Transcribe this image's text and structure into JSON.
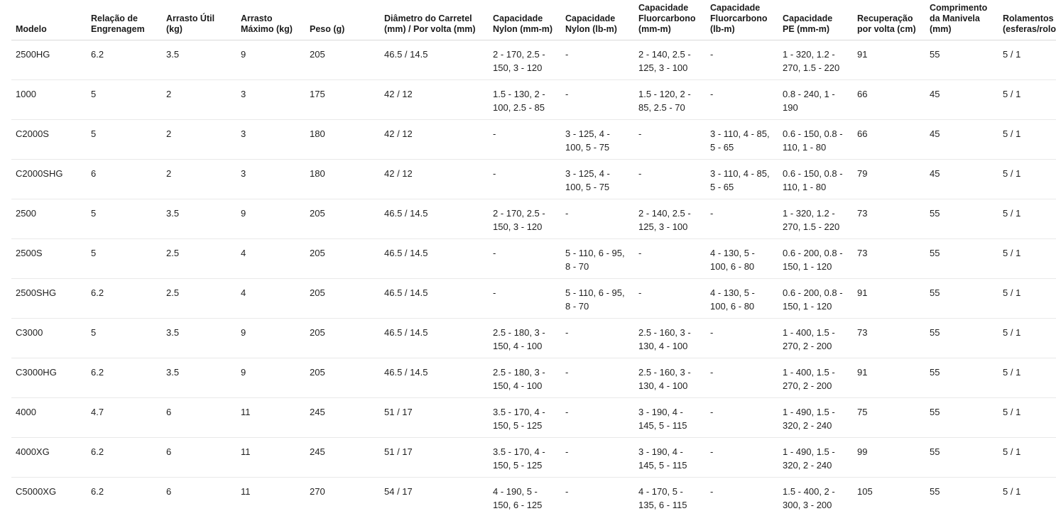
{
  "colors": {
    "background": "#ffffff",
    "text": "#1f1f1f",
    "header_border": "#d9d9d9",
    "row_border": "#e9e9e9"
  },
  "table": {
    "columns": [
      {
        "key": "modelo",
        "label": "Modelo"
      },
      {
        "key": "relacao_engrenagem",
        "label": "Relação de Engrenagem"
      },
      {
        "key": "arrasto_util",
        "label": "Arrasto Útil (kg)"
      },
      {
        "key": "arrasto_maximo",
        "label": "Arrasto Máximo (kg)"
      },
      {
        "key": "peso",
        "label": "Peso (g)"
      },
      {
        "key": "diametro_carretel",
        "label": "Diâmetro do Carretel (mm) / Por volta (mm)"
      },
      {
        "key": "capacidade_nylon_mm",
        "label": "Capacidade Nylon (mm-m)"
      },
      {
        "key": "capacidade_nylon_lb",
        "label": "Capacidade Nylon (lb-m)"
      },
      {
        "key": "capacidade_fluorcarbono_mm",
        "label": "Capacidade Fluorcarbono (mm-m)"
      },
      {
        "key": "capacidade_fluorcarbono_lb",
        "label": "Capacidade Fluorcarbono (lb-m)"
      },
      {
        "key": "capacidade_pe",
        "label": "Capacidade PE (mm-m)"
      },
      {
        "key": "recuperacao_por_volta",
        "label": "Recuperação por volta (cm)"
      },
      {
        "key": "comprimento_manivela",
        "label": "Comprimento da Manivela (mm)"
      },
      {
        "key": "rolamentos",
        "label": "Rolamentos (esferas/rolos)"
      }
    ],
    "rows": [
      [
        "2500HG",
        "6.2",
        "3.5",
        "9",
        "205",
        "46.5 / 14.5",
        "2 - 170, 2.5 - 150, 3 - 120",
        "-",
        "2 - 140, 2.5 - 125, 3 - 100",
        "-",
        "1 - 320, 1.2 - 270, 1.5 - 220",
        "91",
        "55",
        "5 / 1"
      ],
      [
        "1000",
        "5",
        "2",
        "3",
        "175",
        "42 / 12",
        "1.5 - 130, 2 - 100, 2.5 - 85",
        "-",
        "1.5 - 120, 2 - 85, 2.5 - 70",
        "-",
        "0.8 - 240, 1 - 190",
        "66",
        "45",
        "5 / 1"
      ],
      [
        "C2000S",
        "5",
        "2",
        "3",
        "180",
        "42 / 12",
        "-",
        "3 - 125, 4 - 100, 5 - 75",
        "-",
        "3 - 110, 4 - 85, 5 - 65",
        "0.6 - 150, 0.8 - 110, 1 - 80",
        "66",
        "45",
        "5 / 1"
      ],
      [
        "C2000SHG",
        "6",
        "2",
        "3",
        "180",
        "42 / 12",
        "-",
        "3 - 125, 4 - 100, 5 - 75",
        "-",
        "3 - 110, 4 - 85, 5 - 65",
        "0.6 - 150, 0.8 - 110, 1 - 80",
        "79",
        "45",
        "5 / 1"
      ],
      [
        "2500",
        "5",
        "3.5",
        "9",
        "205",
        "46.5 / 14.5",
        "2 - 170, 2.5 - 150, 3 - 120",
        "-",
        "2 - 140, 2.5 - 125, 3 - 100",
        "-",
        "1 - 320, 1.2 - 270, 1.5 - 220",
        "73",
        "55",
        "5 / 1"
      ],
      [
        "2500S",
        "5",
        "2.5",
        "4",
        "205",
        "46.5 / 14.5",
        "-",
        "5 - 110, 6 - 95, 8 - 70",
        "-",
        "4 - 130, 5 - 100, 6 - 80",
        "0.6 - 200, 0.8 - 150, 1 - 120",
        "73",
        "55",
        "5 / 1"
      ],
      [
        "2500SHG",
        "6.2",
        "2.5",
        "4",
        "205",
        "46.5 / 14.5",
        "-",
        "5 - 110, 6 - 95, 8 - 70",
        "-",
        "4 - 130, 5 - 100, 6 - 80",
        "0.6 - 200, 0.8 - 150, 1 - 120",
        "91",
        "55",
        "5 / 1"
      ],
      [
        "C3000",
        "5",
        "3.5",
        "9",
        "205",
        "46.5 / 14.5",
        "2.5 - 180, 3 - 150, 4 - 100",
        "-",
        "2.5 - 160, 3 - 130, 4 - 100",
        "-",
        "1 - 400, 1.5 - 270, 2 - 200",
        "73",
        "55",
        "5 / 1"
      ],
      [
        "C3000HG",
        "6.2",
        "3.5",
        "9",
        "205",
        "46.5 / 14.5",
        "2.5 - 180, 3 - 150, 4 - 100",
        "-",
        "2.5 - 160, 3 - 130, 4 - 100",
        "-",
        "1 - 400, 1.5 - 270, 2 - 200",
        "91",
        "55",
        "5 / 1"
      ],
      [
        "4000",
        "4.7",
        "6",
        "11",
        "245",
        "51 / 17",
        "3.5 - 170, 4 - 150, 5 - 125",
        "-",
        "3 - 190, 4 - 145, 5 - 115",
        "-",
        "1 - 490, 1.5 - 320, 2 - 240",
        "75",
        "55",
        "5 / 1"
      ],
      [
        "4000XG",
        "6.2",
        "6",
        "11",
        "245",
        "51 / 17",
        "3.5 - 170, 4 - 150, 5 - 125",
        "-",
        "3 - 190, 4 - 145, 5 - 115",
        "-",
        "1 - 490, 1.5 - 320, 2 - 240",
        "99",
        "55",
        "5 / 1"
      ],
      [
        "C5000XG",
        "6.2",
        "6",
        "11",
        "270",
        "54 / 17",
        "4 - 190, 5 - 150, 6 - 125",
        "-",
        "4 - 170, 5 - 135, 6 - 115",
        "-",
        "1.5 - 400, 2 - 300, 3 - 200",
        "105",
        "55",
        "5 / 1"
      ]
    ]
  }
}
